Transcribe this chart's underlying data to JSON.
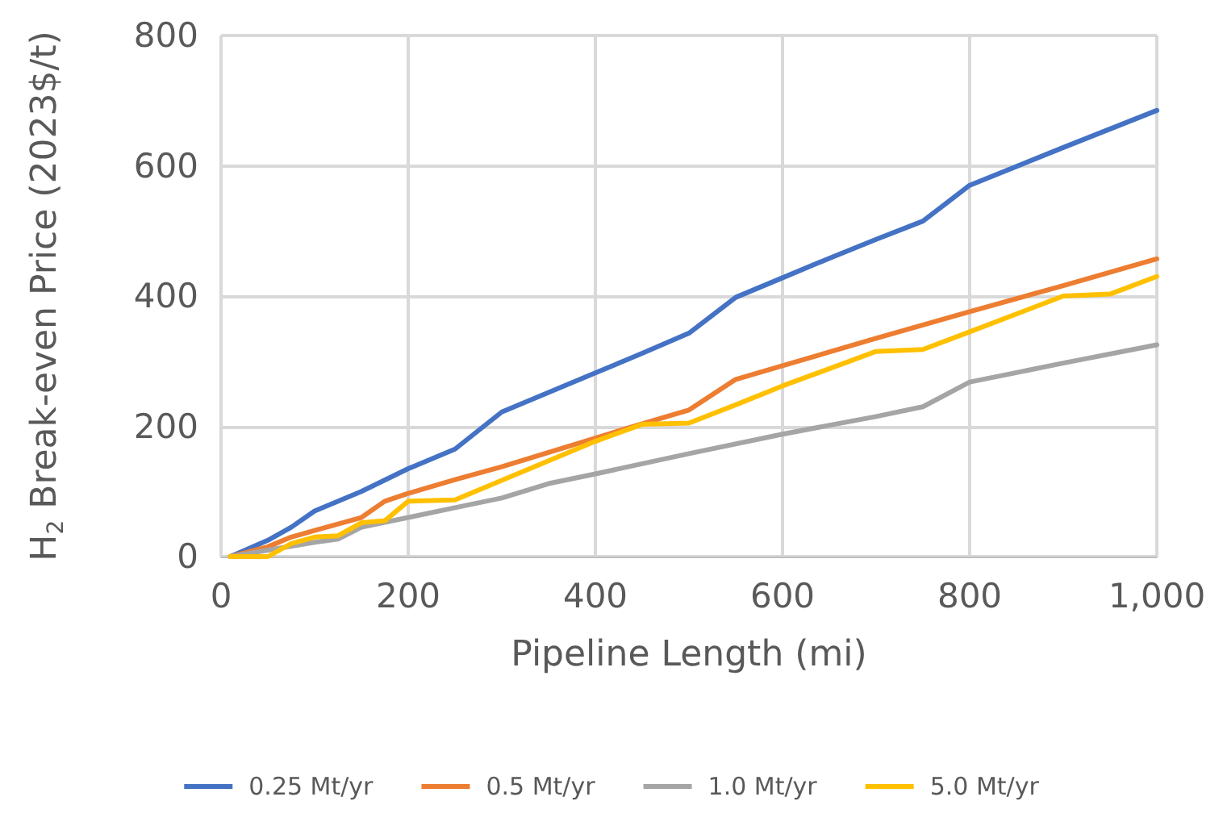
{
  "chart_data": {
    "type": "line",
    "xlabel": "Pipeline Length (mi)",
    "ylabel": "H$_{2}$ Break-even Price (2023$/t)",
    "xlim": [
      0,
      1000
    ],
    "xticks": [
      0,
      200,
      400,
      600,
      800,
      {
        "value": 1000,
        "label": "1,000"
      }
    ],
    "ylim": [
      0,
      800
    ],
    "yticks": [
      0,
      200,
      400,
      600,
      800
    ],
    "grid": true,
    "legend": "bottom",
    "marker": "none",
    "line_style": "solid",
    "series": [
      {
        "name": "0.25 Mt/yr",
        "color": "#4472c4",
        "x": [
          10,
          50,
          75,
          100,
          150,
          200,
          250,
          300,
          350,
          400,
          450,
          500,
          550,
          600,
          650,
          700,
          750,
          800,
          900,
          1000
        ],
        "values": [
          0,
          25,
          45,
          70,
          100,
          135,
          165,
          222,
          252,
          282,
          312,
          343,
          398,
          428,
          458,
          487,
          515,
          570,
          628,
          685
        ]
      },
      {
        "name": "0.5 Mt/yr",
        "color": "#ed7d31",
        "x": [
          10,
          50,
          75,
          100,
          125,
          150,
          175,
          200,
          250,
          300,
          350,
          400,
          450,
          500,
          550,
          600,
          700,
          800,
          900,
          1000
        ],
        "values": [
          0,
          15,
          30,
          40,
          50,
          60,
          85,
          97,
          118,
          138,
          160,
          182,
          204,
          225,
          272,
          293,
          335,
          376,
          416,
          457
        ]
      },
      {
        "name": "1.0 Mt/yr",
        "color": "#a5a5a5",
        "x": [
          10,
          50,
          100,
          125,
          150,
          200,
          250,
          300,
          350,
          400,
          500,
          600,
          700,
          750,
          800,
          900,
          1000
        ],
        "values": [
          0,
          10,
          22,
          27,
          45,
          60,
          75,
          90,
          112,
          127,
          158,
          188,
          215,
          230,
          268,
          297,
          325
        ]
      },
      {
        "name": "5.0 Mt/yr",
        "color": "#ffc000",
        "x": [
          10,
          50,
          75,
          100,
          125,
          150,
          175,
          200,
          250,
          300,
          350,
          400,
          450,
          500,
          550,
          600,
          700,
          750,
          800,
          900,
          950,
          1000
        ],
        "values": [
          0,
          0,
          20,
          30,
          32,
          52,
          55,
          85,
          87,
          117,
          147,
          177,
          203,
          205,
          233,
          262,
          315,
          318,
          345,
          400,
          403,
          430
        ]
      }
    ]
  }
}
